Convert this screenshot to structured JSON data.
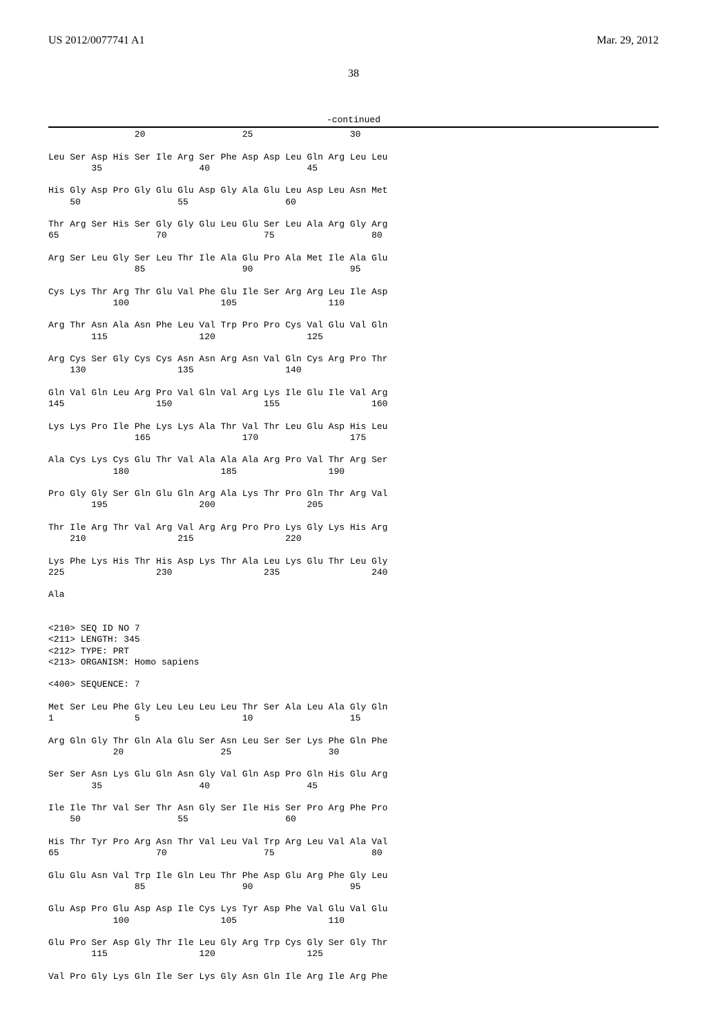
{
  "header": {
    "pub_number": "US 2012/0077741 A1",
    "pub_date": "Mar. 29, 2012"
  },
  "page_number": "38",
  "continued_label": "-continued",
  "sequence_text": "                20                  25                  30\n\nLeu Ser Asp His Ser Ile Arg Ser Phe Asp Asp Leu Gln Arg Leu Leu\n        35                  40                  45\n\nHis Gly Asp Pro Gly Glu Glu Asp Gly Ala Glu Leu Asp Leu Asn Met\n    50                  55                  60\n\nThr Arg Ser His Ser Gly Gly Glu Leu Glu Ser Leu Ala Arg Gly Arg\n65                  70                  75                  80\n\nArg Ser Leu Gly Ser Leu Thr Ile Ala Glu Pro Ala Met Ile Ala Glu\n                85                  90                  95\n\nCys Lys Thr Arg Thr Glu Val Phe Glu Ile Ser Arg Arg Leu Ile Asp\n            100                 105                 110\n\nArg Thr Asn Ala Asn Phe Leu Val Trp Pro Pro Cys Val Glu Val Gln\n        115                 120                 125\n\nArg Cys Ser Gly Cys Cys Asn Asn Arg Asn Val Gln Cys Arg Pro Thr\n    130                 135                 140\n\nGln Val Gln Leu Arg Pro Val Gln Val Arg Lys Ile Glu Ile Val Arg\n145                 150                 155                 160\n\nLys Lys Pro Ile Phe Lys Lys Ala Thr Val Thr Leu Glu Asp His Leu\n                165                 170                 175\n\nAla Cys Lys Cys Glu Thr Val Ala Ala Ala Arg Pro Val Thr Arg Ser\n            180                 185                 190\n\nPro Gly Gly Ser Gln Glu Gln Arg Ala Lys Thr Pro Gln Thr Arg Val\n        195                 200                 205\n\nThr Ile Arg Thr Val Arg Val Arg Arg Pro Pro Lys Gly Lys His Arg\n    210                 215                 220\n\nLys Phe Lys His Thr His Asp Lys Thr Ala Leu Lys Glu Thr Leu Gly\n225                 230                 235                 240\n\nAla\n\n\n<210> SEQ ID NO 7\n<211> LENGTH: 345\n<212> TYPE: PRT\n<213> ORGANISM: Homo sapiens\n\n<400> SEQUENCE: 7\n\nMet Ser Leu Phe Gly Leu Leu Leu Leu Thr Ser Ala Leu Ala Gly Gln\n1               5                   10                  15\n\nArg Gln Gly Thr Gln Ala Glu Ser Asn Leu Ser Ser Lys Phe Gln Phe\n            20                  25                  30\n\nSer Ser Asn Lys Glu Gln Asn Gly Val Gln Asp Pro Gln His Glu Arg\n        35                  40                  45\n\nIle Ile Thr Val Ser Thr Asn Gly Ser Ile His Ser Pro Arg Phe Pro\n    50                  55                  60\n\nHis Thr Tyr Pro Arg Asn Thr Val Leu Val Trp Arg Leu Val Ala Val\n65                  70                  75                  80\n\nGlu Glu Asn Val Trp Ile Gln Leu Thr Phe Asp Glu Arg Phe Gly Leu\n                85                  90                  95\n\nGlu Asp Pro Glu Asp Asp Ile Cys Lys Tyr Asp Phe Val Glu Val Glu\n            100                 105                 110\n\nGlu Pro Ser Asp Gly Thr Ile Leu Gly Arg Trp Cys Gly Ser Gly Thr\n        115                 120                 125\n\nVal Pro Gly Lys Gln Ile Ser Lys Gly Asn Gln Ile Arg Ile Arg Phe"
}
